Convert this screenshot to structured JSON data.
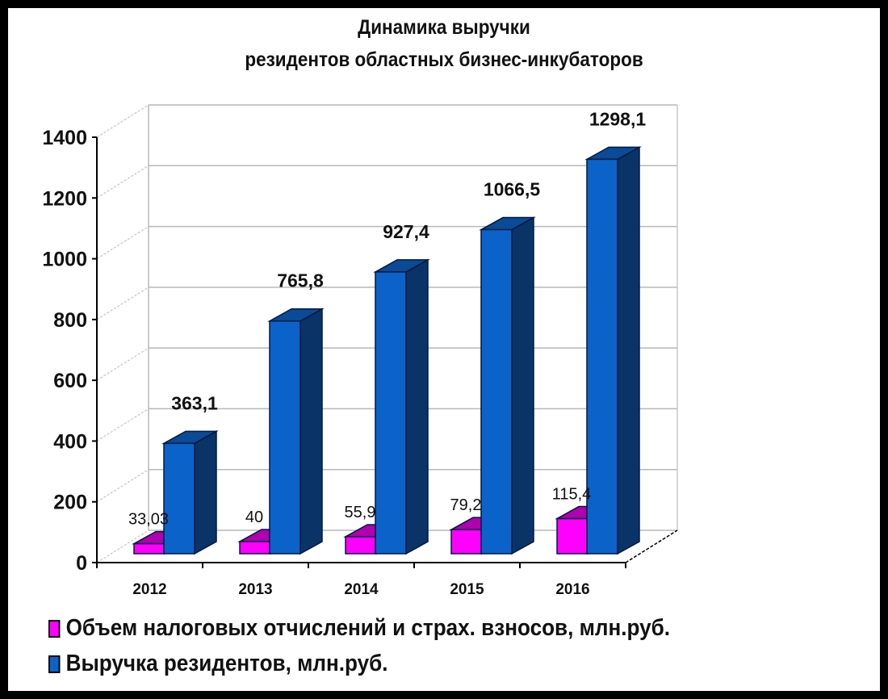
{
  "chart_data": {
    "type": "bar",
    "subtype": "3d-clustered-column",
    "title": "Динамика выручки резидентов областных бизнес-инкубаторов",
    "title_lines": [
      "Динамика выручки",
      "резидентов областных бизнес-инкубаторов"
    ],
    "categories": [
      "2012",
      "2013",
      "2014",
      "2015",
      "2016"
    ],
    "series": [
      {
        "name": "Объем налоговых отчислений и страх. взносов, млн.руб.",
        "color": "#ff00ff",
        "top_color": "#b000b0",
        "values": [
          33.03,
          40,
          55.9,
          79.2,
          115.4
        ],
        "labels": [
          "33,03",
          "40",
          "55,9",
          "79,2",
          "115,4"
        ]
      },
      {
        "name": "Выручка резидентов, млн.руб.",
        "color": "#0b63c9",
        "top_color": "#0a4a96",
        "side_color": "#0a3468",
        "values": [
          363.1,
          765.8,
          927.4,
          1066.5,
          1298.1
        ],
        "labels": [
          "363,1",
          "765,8",
          "927,4",
          "1066,5",
          "1298,1"
        ]
      }
    ],
    "yticks": [
      "0",
      "200",
      "400",
      "600",
      "800",
      "1000",
      "1200",
      "1400"
    ],
    "ylim": [
      0,
      1400
    ],
    "xlabel": "",
    "ylabel": "",
    "grid": true,
    "legend_position": "bottom"
  },
  "legend": [
    {
      "label": "Объем налоговых отчислений и страх. взносов, млн.руб.",
      "color": "#ff00ff"
    },
    {
      "label": "Выручка резидентов, млн.руб.",
      "color": "#0b63c9"
    }
  ]
}
